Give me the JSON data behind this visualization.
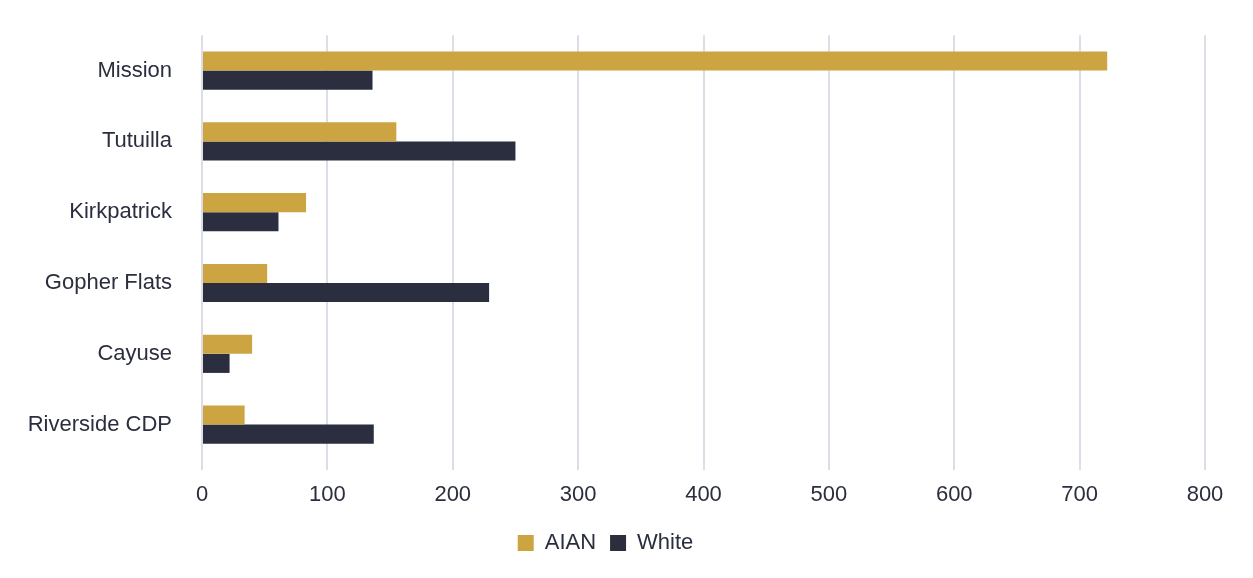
{
  "chart_data": {
    "type": "bar",
    "orientation": "horizontal",
    "categories": [
      "Mission",
      "Tutuilla",
      "Kirkpatrick",
      "Gopher Flats",
      "Cayuse",
      "Riverside CDP"
    ],
    "series": [
      {
        "name": "AIAN",
        "color": "#cca542",
        "values": [
          722,
          155,
          83,
          52,
          40,
          34
        ]
      },
      {
        "name": "White",
        "color": "#2b2e3e",
        "values": [
          136,
          250,
          61,
          229,
          22,
          137
        ]
      }
    ],
    "xlim": [
      0,
      800
    ],
    "xticks": [
      0,
      100,
      200,
      300,
      400,
      500,
      600,
      700,
      800
    ],
    "grid": "x",
    "legend": "bottom"
  }
}
